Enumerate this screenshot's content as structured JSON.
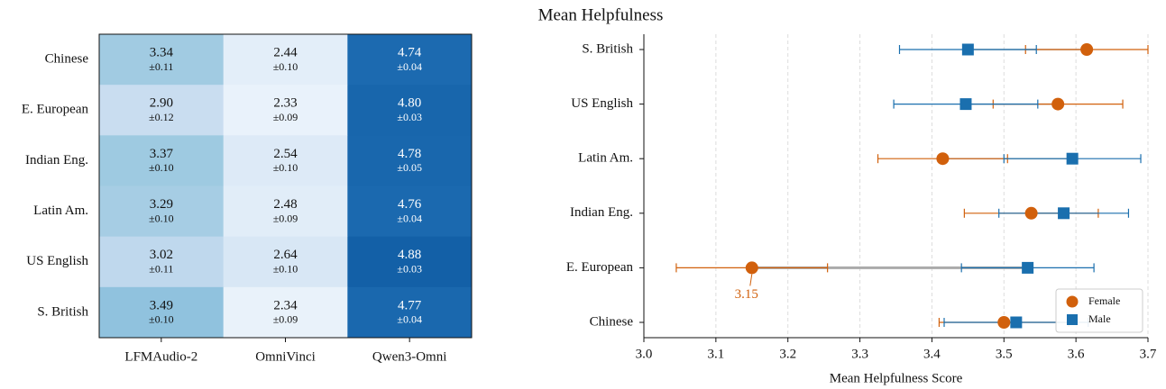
{
  "title": "Mean Helpfulness",
  "chart_data": [
    {
      "type": "heatmap",
      "rows": [
        "Chinese",
        "E. European",
        "Indian Eng.",
        "Latin Am.",
        "US English",
        "S. British"
      ],
      "columns": [
        "LFMAudio-2",
        "OmniVinci",
        "Qwen3-Omni"
      ],
      "values": [
        [
          3.34,
          2.44,
          4.74
        ],
        [
          2.9,
          2.33,
          4.8
        ],
        [
          3.37,
          2.54,
          4.78
        ],
        [
          3.29,
          2.48,
          4.76
        ],
        [
          3.02,
          2.64,
          4.88
        ],
        [
          3.49,
          2.34,
          4.77
        ]
      ],
      "value_labels": [
        [
          "3.34",
          "2.44",
          "4.74"
        ],
        [
          "2.90",
          "2.33",
          "4.80"
        ],
        [
          "3.37",
          "2.54",
          "4.78"
        ],
        [
          "3.29",
          "2.48",
          "4.76"
        ],
        [
          "3.02",
          "2.64",
          "4.88"
        ],
        [
          "3.49",
          "2.34",
          "4.77"
        ]
      ],
      "error_labels": [
        [
          "±0.11",
          "±0.10",
          "±0.04"
        ],
        [
          "±0.12",
          "±0.09",
          "±0.03"
        ],
        [
          "±0.10",
          "±0.10",
          "±0.05"
        ],
        [
          "±0.10",
          "±0.09",
          "±0.04"
        ],
        [
          "±0.11",
          "±0.10",
          "±0.03"
        ],
        [
          "±0.10",
          "±0.09",
          "±0.04"
        ]
      ],
      "colorscale": [
        "#f7fbff",
        "#deebf7",
        "#c6dbef",
        "#9ecae1",
        "#6baed6",
        "#4292c6",
        "#2171b5",
        "#08519c",
        "#08306b"
      ],
      "clim": [
        2.1,
        5.5
      ]
    },
    {
      "type": "dot_errorbar",
      "categories": [
        "S. British",
        "US English",
        "Latin Am.",
        "Indian Eng.",
        "E. European",
        "Chinese"
      ],
      "series": [
        {
          "name": "Female",
          "color": "#d1600c",
          "marker": "circle",
          "values": [
            3.615,
            3.575,
            3.415,
            3.538,
            3.15,
            3.5
          ],
          "errors": [
            0.085,
            0.09,
            0.09,
            0.093,
            0.105,
            0.09
          ]
        },
        {
          "name": "Male",
          "color": "#1a6fae",
          "marker": "square",
          "values": [
            3.45,
            3.447,
            3.595,
            3.583,
            3.533,
            3.517
          ],
          "errors": [
            0.095,
            0.1,
            0.095,
            0.09,
            0.092,
            0.1
          ]
        }
      ],
      "xlabel": "Mean Helpfulness Score",
      "xlim": [
        3.0,
        3.7
      ],
      "xticks": [
        {
          "value": 3.0,
          "label": "3.0"
        },
        3.1,
        3.2,
        3.3,
        3.4,
        3.5,
        3.6,
        {
          "value": 3.7,
          "label": "3.7"
        }
      ],
      "grid": true,
      "legend": "lower right",
      "annotation": {
        "text": "3.15",
        "x": 3.15,
        "category": "E. European"
      }
    }
  ]
}
